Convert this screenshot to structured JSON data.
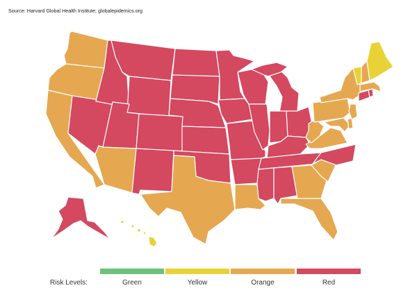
{
  "source": "Source: Harvard Global Health Institute; globalepidemics.org",
  "colors": {
    "green": "#6cc17a",
    "yellow": "#e8d236",
    "orange": "#e5a850",
    "red": "#d44860"
  },
  "legend": {
    "title": "Risk Levels:",
    "levels": [
      {
        "key": "green",
        "label": "Green"
      },
      {
        "key": "yellow",
        "label": "Yellow"
      },
      {
        "key": "orange",
        "label": "Orange"
      },
      {
        "key": "red",
        "label": "Red"
      }
    ]
  },
  "states": [
    {
      "id": "WA",
      "level": "orange"
    },
    {
      "id": "OR",
      "level": "orange"
    },
    {
      "id": "CA",
      "level": "orange"
    },
    {
      "id": "NV",
      "level": "red"
    },
    {
      "id": "ID",
      "level": "red"
    },
    {
      "id": "MT",
      "level": "red"
    },
    {
      "id": "WY",
      "level": "red"
    },
    {
      "id": "UT",
      "level": "red"
    },
    {
      "id": "AZ",
      "level": "orange"
    },
    {
      "id": "CO",
      "level": "red"
    },
    {
      "id": "NM",
      "level": "red"
    },
    {
      "id": "ND",
      "level": "red"
    },
    {
      "id": "SD",
      "level": "red"
    },
    {
      "id": "NE",
      "level": "red"
    },
    {
      "id": "KS",
      "level": "red"
    },
    {
      "id": "OK",
      "level": "red"
    },
    {
      "id": "TX",
      "level": "orange"
    },
    {
      "id": "MN",
      "level": "red"
    },
    {
      "id": "IA",
      "level": "red"
    },
    {
      "id": "MO",
      "level": "red"
    },
    {
      "id": "AR",
      "level": "red"
    },
    {
      "id": "LA",
      "level": "orange"
    },
    {
      "id": "WI",
      "level": "red"
    },
    {
      "id": "IL",
      "level": "red"
    },
    {
      "id": "MI",
      "level": "red"
    },
    {
      "id": "IN",
      "level": "red"
    },
    {
      "id": "OH",
      "level": "red"
    },
    {
      "id": "KY",
      "level": "red"
    },
    {
      "id": "TN",
      "level": "red"
    },
    {
      "id": "MS",
      "level": "red"
    },
    {
      "id": "AL",
      "level": "red"
    },
    {
      "id": "GA",
      "level": "orange"
    },
    {
      "id": "FL",
      "level": "orange"
    },
    {
      "id": "SC",
      "level": "orange"
    },
    {
      "id": "NC",
      "level": "red"
    },
    {
      "id": "VA",
      "level": "orange"
    },
    {
      "id": "WV",
      "level": "orange"
    },
    {
      "id": "PA",
      "level": "orange"
    },
    {
      "id": "NY",
      "level": "orange"
    },
    {
      "id": "MD",
      "level": "orange"
    },
    {
      "id": "DE",
      "level": "orange"
    },
    {
      "id": "NJ",
      "level": "orange"
    },
    {
      "id": "CT",
      "level": "red"
    },
    {
      "id": "RI",
      "level": "red"
    },
    {
      "id": "MA",
      "level": "orange"
    },
    {
      "id": "VT",
      "level": "yellow"
    },
    {
      "id": "NH",
      "level": "orange"
    },
    {
      "id": "ME",
      "level": "yellow"
    },
    {
      "id": "AK",
      "level": "red"
    },
    {
      "id": "HI",
      "level": "yellow"
    }
  ]
}
